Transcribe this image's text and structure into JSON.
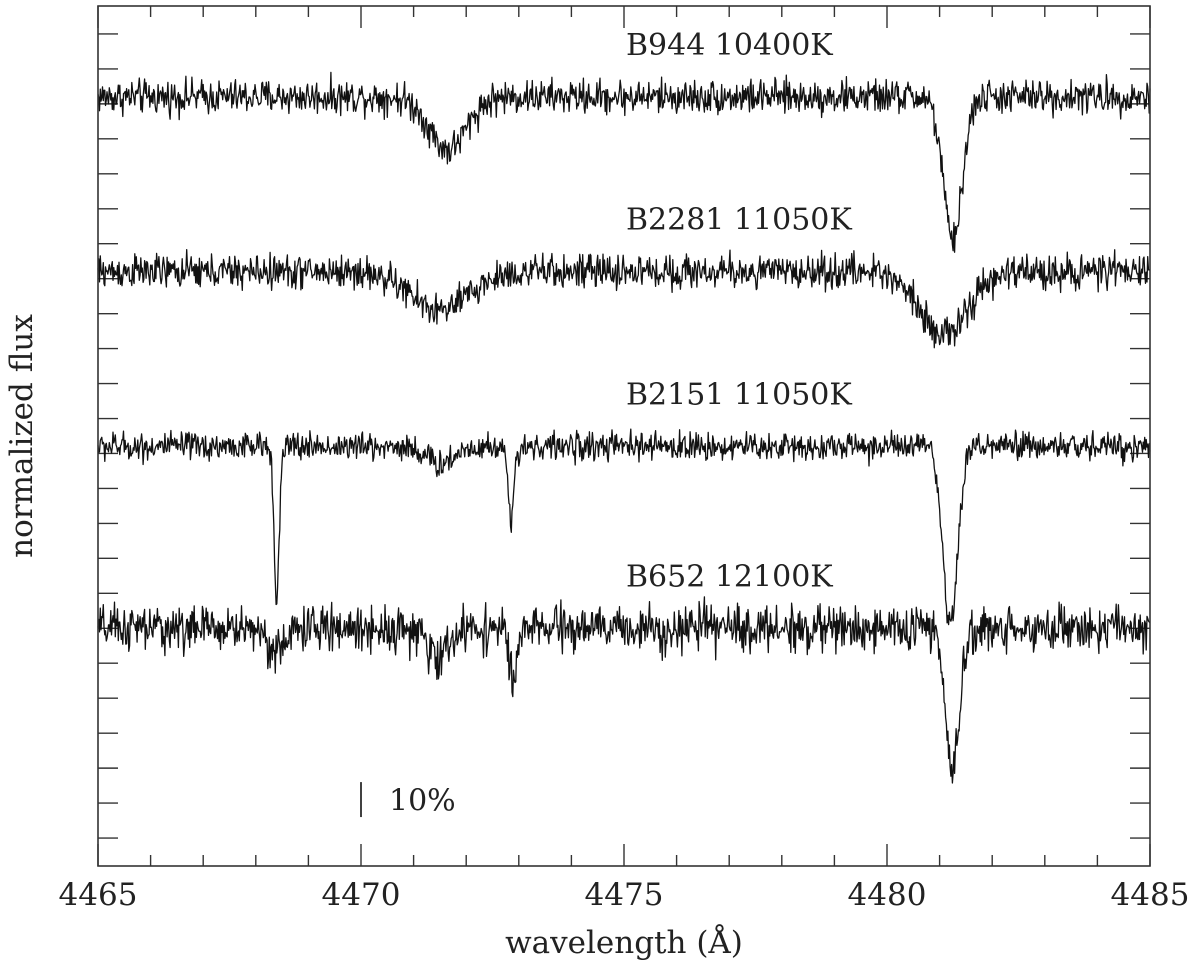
{
  "chart_data": {
    "type": "line",
    "xlabel": "wavelength (Å)",
    "ylabel": "normalized flux",
    "xlim": [
      4465,
      4485
    ],
    "xticks": [
      4465,
      4470,
      4475,
      4480,
      4485
    ],
    "x_minor_step": 1,
    "ylim": [
      -0.19,
      1.04
    ],
    "y_tick_step": 0.05,
    "grid": false,
    "legend": "none",
    "scale_bar": {
      "label": "10%",
      "x": 4470,
      "y_bottom": -0.12,
      "height": 0.05
    },
    "series": [
      {
        "name": "B944 10400K",
        "continuum": 0.91,
        "noise_amplitude": 0.012,
        "lines": [
          {
            "center": 4471.65,
            "depth": 0.075,
            "width": 0.35
          },
          {
            "center": 4481.25,
            "depth": 0.205,
            "width": 0.18
          }
        ]
      },
      {
        "name": "B2281 11050K",
        "continuum": 0.66,
        "noise_amplitude": 0.012,
        "lines": [
          {
            "center": 4471.5,
            "depth": 0.055,
            "width": 0.55
          },
          {
            "center": 4481.1,
            "depth": 0.09,
            "width": 0.45
          }
        ]
      },
      {
        "name": "B2151 11050K",
        "continuum": 0.41,
        "noise_amplitude": 0.01,
        "lines": [
          {
            "center": 4468.4,
            "depth": 0.21,
            "width": 0.05
          },
          {
            "center": 4471.5,
            "depth": 0.025,
            "width": 0.25
          },
          {
            "center": 4472.85,
            "depth": 0.115,
            "width": 0.05
          },
          {
            "center": 4481.2,
            "depth": 0.26,
            "width": 0.14
          }
        ]
      },
      {
        "name": "B652 12100K",
        "continuum": 0.15,
        "noise_amplitude": 0.016,
        "lines": [
          {
            "center": 4468.4,
            "depth": 0.035,
            "width": 0.15
          },
          {
            "center": 4471.45,
            "depth": 0.04,
            "width": 0.22
          },
          {
            "center": 4472.9,
            "depth": 0.085,
            "width": 0.07
          },
          {
            "center": 4481.25,
            "depth": 0.21,
            "width": 0.13
          }
        ]
      }
    ]
  }
}
